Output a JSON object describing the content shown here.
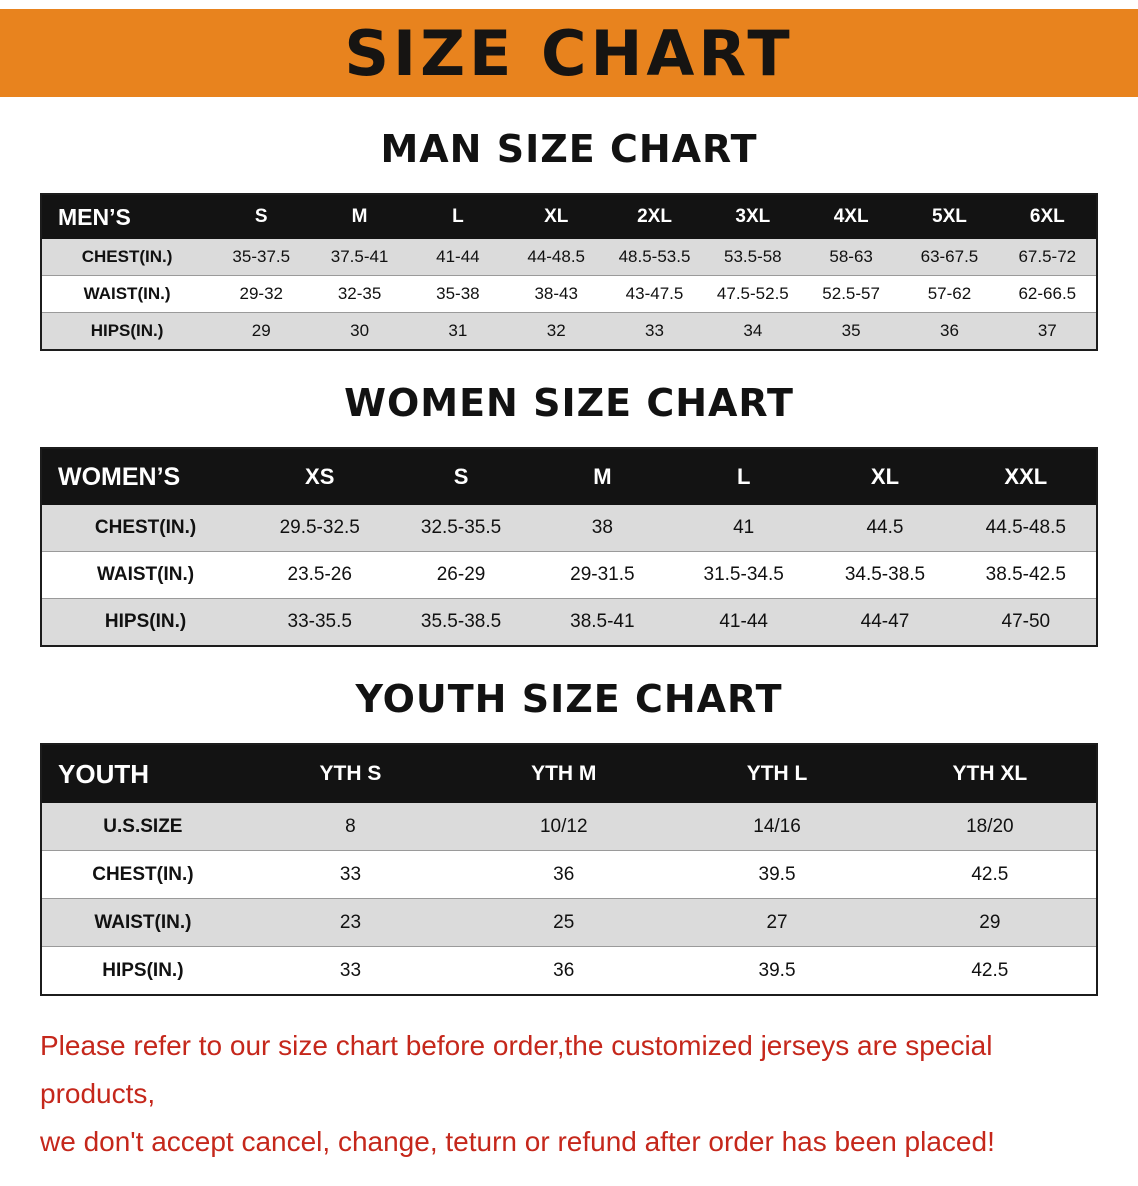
{
  "banner": {
    "title": "SIZE CHART"
  },
  "colors": {
    "banner_bg": "#E8831E",
    "header_bg": "#131313",
    "row_alt": "#DBDBDB",
    "table_border": "#1C1C1C",
    "disclaimer_red": "#C5271B"
  },
  "chart_data": [
    {
      "type": "table",
      "title": "MAN SIZE CHART",
      "label": "MEN’S",
      "columns": [
        "S",
        "M",
        "L",
        "XL",
        "2XL",
        "3XL",
        "4XL",
        "5XL",
        "6XL"
      ],
      "rows": [
        {
          "label": "CHEST(IN.)",
          "values": [
            "35-37.5",
            "37.5-41",
            "41-44",
            "44-48.5",
            "48.5-53.5",
            "53.5-58",
            "58-63",
            "63-67.5",
            "67.5-72"
          ]
        },
        {
          "label": "WAIST(IN.)",
          "values": [
            "29-32",
            "32-35",
            "35-38",
            "38-43",
            "43-47.5",
            "47.5-52.5",
            "52.5-57",
            "57-62",
            "62-66.5"
          ]
        },
        {
          "label": "HIPS(IN.)",
          "values": [
            "29",
            "30",
            "31",
            "32",
            "33",
            "34",
            "35",
            "36",
            "37"
          ]
        }
      ]
    },
    {
      "type": "table",
      "title": "WOMEN SIZE CHART",
      "label": "WOMEN’S",
      "columns": [
        "XS",
        "S",
        "M",
        "L",
        "XL",
        "XXL"
      ],
      "rows": [
        {
          "label": "CHEST(IN.)",
          "values": [
            "29.5-32.5",
            "32.5-35.5",
            "38",
            "41",
            "44.5",
            "44.5-48.5"
          ]
        },
        {
          "label": "WAIST(IN.)",
          "values": [
            "23.5-26",
            "26-29",
            "29-31.5",
            "31.5-34.5",
            "34.5-38.5",
            "38.5-42.5"
          ]
        },
        {
          "label": "HIPS(IN.)",
          "values": [
            "33-35.5",
            "35.5-38.5",
            "38.5-41",
            "41-44",
            "44-47",
            "47-50"
          ]
        }
      ]
    },
    {
      "type": "table",
      "title": "YOUTH SIZE CHART",
      "label": "YOUTH",
      "columns": [
        "YTH S",
        "YTH M",
        "YTH L",
        "YTH XL"
      ],
      "rows": [
        {
          "label": "U.S.SIZE",
          "values": [
            "8",
            "10/12",
            "14/16",
            "18/20"
          ]
        },
        {
          "label": "CHEST(IN.)",
          "values": [
            "33",
            "36",
            "39.5",
            "42.5"
          ]
        },
        {
          "label": "WAIST(IN.)",
          "values": [
            "23",
            "25",
            "27",
            "29"
          ]
        },
        {
          "label": "HIPS(IN.)",
          "values": [
            "33",
            "36",
            "39.5",
            "42.5"
          ]
        }
      ]
    }
  ],
  "disclaimer": {
    "line1": "Please refer to our size chart before order,the customized jerseys are special products,",
    "line2": "we don't accept cancel, change, teturn or refund after order has been placed!"
  }
}
